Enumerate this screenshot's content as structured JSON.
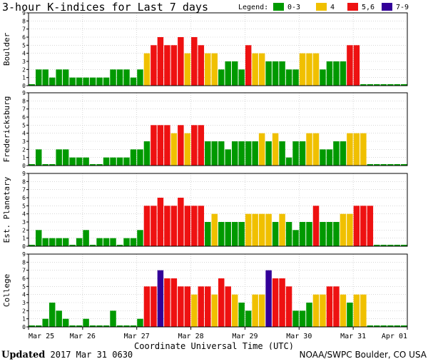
{
  "chart_data": {
    "type": "bar",
    "title": "3-hour K-indices for Last 7 days",
    "legend": {
      "label": "Legend:",
      "placement": "top-right",
      "entries": [
        {
          "label": "0-3",
          "color": "#009900"
        },
        {
          "label": "4",
          "color": "#f0c000"
        },
        {
          "label": "5,6",
          "color": "#ee1111"
        },
        {
          "label": "7-9",
          "color": "#330099"
        }
      ]
    },
    "ylim": [
      0,
      9
    ],
    "yticks": [
      "0",
      "1",
      "2",
      "3",
      "4",
      "5",
      "6",
      "7",
      "8",
      "9"
    ],
    "x_tick_labels": [
      "Mar 25",
      "Mar 26",
      "Mar 27",
      "Mar 28",
      "Mar 29",
      "Mar 30",
      "Mar 31",
      "Apr 01"
    ],
    "xlabel": "Coordinate Universal Time (UTC)",
    "grid": true,
    "series": [
      {
        "name": "Boulder",
        "values": [
          0,
          2,
          2,
          1,
          2,
          2,
          1,
          1,
          1,
          1,
          1,
          1,
          2,
          2,
          2,
          1,
          2,
          4,
          5,
          6,
          5,
          5,
          6,
          4,
          6,
          5,
          4,
          4,
          2,
          3,
          3,
          2,
          5,
          4,
          4,
          3,
          3,
          3,
          2,
          2,
          4,
          4,
          4,
          2,
          3,
          3,
          3,
          5,
          5,
          0,
          0,
          0,
          0,
          0,
          0,
          0
        ]
      },
      {
        "name": "Fredericksburg",
        "values": [
          0,
          2,
          0,
          0,
          2,
          2,
          1,
          1,
          1,
          0,
          0,
          1,
          1,
          1,
          1,
          2,
          2,
          3,
          5,
          5,
          5,
          4,
          5,
          4,
          5,
          5,
          3,
          3,
          3,
          2,
          3,
          3,
          3,
          3,
          4,
          3,
          4,
          3,
          1,
          3,
          3,
          4,
          4,
          2,
          2,
          3,
          3,
          4,
          4,
          4,
          0,
          0,
          0,
          0,
          0,
          0
        ]
      },
      {
        "name": "Est. Planetary",
        "values": [
          0,
          2,
          1,
          1,
          1,
          1,
          0,
          1,
          2,
          0,
          1,
          1,
          1,
          0,
          1,
          1,
          2,
          5,
          5,
          6,
          5,
          5,
          6,
          5,
          5,
          5,
          3,
          4,
          3,
          3,
          3,
          3,
          4,
          4,
          4,
          4,
          3,
          4,
          3,
          2,
          3,
          3,
          5,
          3,
          3,
          3,
          4,
          4,
          5,
          5,
          5,
          0,
          0,
          0,
          0,
          0,
          0
        ]
      },
      {
        "name": "College",
        "values": [
          0,
          0,
          1,
          3,
          2,
          1,
          0,
          0,
          1,
          0,
          0,
          0,
          2,
          0,
          0,
          0,
          1,
          5,
          5,
          7,
          6,
          6,
          5,
          5,
          4,
          5,
          5,
          4,
          6,
          5,
          4,
          3,
          2,
          4,
          4,
          7,
          6,
          6,
          5,
          2,
          2,
          3,
          4,
          4,
          5,
          5,
          4,
          3,
          4,
          4,
          0,
          0,
          0,
          0,
          0,
          0
        ]
      }
    ]
  },
  "footer": {
    "updated_label": "Updated",
    "updated_value": "2017 Mar 31 0630",
    "source": "NOAA/SWPC Boulder, CO USA"
  }
}
